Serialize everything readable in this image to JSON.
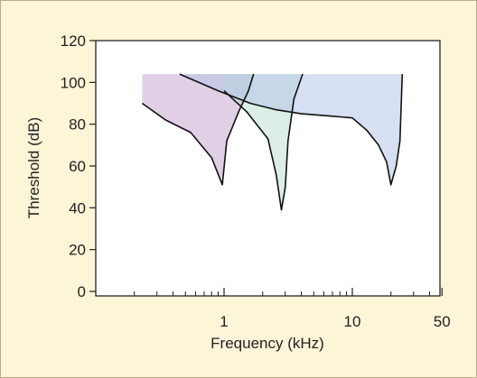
{
  "chart_data": {
    "type": "area",
    "xlabel": "Frequency (kHz)",
    "ylabel": "Threshold (dB)",
    "x_scale": "log",
    "xlim": [
      0.1,
      50
    ],
    "ylim": [
      0,
      120
    ],
    "x_ticks": [
      {
        "value": 1,
        "label": "1"
      },
      {
        "value": 10,
        "label": "10"
      },
      {
        "value": 50,
        "label": "50"
      }
    ],
    "y_ticks": [
      {
        "value": 0,
        "label": "0"
      },
      {
        "value": 20,
        "label": "20"
      },
      {
        "value": 40,
        "label": "40"
      },
      {
        "value": 60,
        "label": "60"
      },
      {
        "value": 80,
        "label": "80"
      },
      {
        "value": 100,
        "label": "100"
      },
      {
        "value": 120,
        "label": "120"
      }
    ],
    "grid": false,
    "legend": "none",
    "series": [
      {
        "color": "#c8a8cf",
        "fill_top": 104,
        "curve": [
          [
            0.23,
            90
          ],
          [
            0.35,
            82
          ],
          [
            0.55,
            76
          ],
          [
            0.8,
            64
          ],
          [
            0.97,
            51
          ],
          [
            1.05,
            72
          ],
          [
            1.3,
            86
          ],
          [
            1.55,
            96
          ],
          [
            1.7,
            104
          ]
        ]
      },
      {
        "color": "#bfe0d2",
        "fill_top": 104,
        "curve": [
          [
            1.0,
            96
          ],
          [
            1.5,
            86
          ],
          [
            2.2,
            73
          ],
          [
            2.55,
            56
          ],
          [
            2.8,
            39
          ],
          [
            3.0,
            50
          ],
          [
            3.15,
            72
          ],
          [
            3.5,
            92
          ],
          [
            4.1,
            104
          ]
        ]
      },
      {
        "color": "#b5c6e8",
        "fill_top": 104,
        "curve": [
          [
            0.45,
            104
          ],
          [
            0.9,
            96
          ],
          [
            1.6,
            90
          ],
          [
            2.5,
            87
          ],
          [
            4.0,
            85
          ],
          [
            6.5,
            84
          ],
          [
            10.0,
            83
          ],
          [
            13.0,
            77
          ],
          [
            16.0,
            70
          ],
          [
            18.5,
            62
          ],
          [
            20.0,
            51
          ],
          [
            22.0,
            60
          ],
          [
            23.5,
            72
          ],
          [
            24.5,
            104
          ]
        ]
      }
    ]
  }
}
